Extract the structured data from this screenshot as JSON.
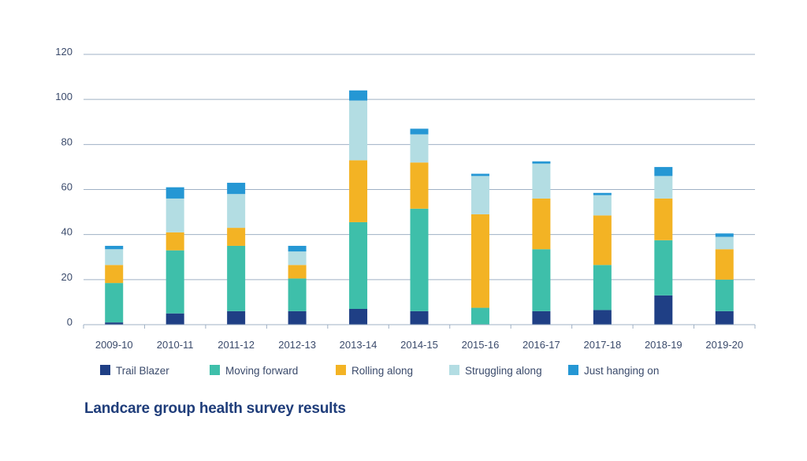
{
  "caption": "Landcare group health survey results",
  "chart_data": {
    "type": "bar",
    "stacked": true,
    "title": "",
    "xlabel": "",
    "ylabel": "",
    "ylim": [
      0,
      120
    ],
    "yticks": [
      0,
      20,
      40,
      60,
      80,
      100,
      120
    ],
    "grid": true,
    "legend_position": "bottom",
    "categories": [
      "2009-10",
      "2010-11",
      "2011-12",
      "2012-13",
      "2013-14",
      "2014-15",
      "2015-16",
      "2016-17",
      "2017-18",
      "2018-19",
      "2019-20"
    ],
    "series": [
      {
        "name": "Trail Blazer",
        "color": "#1f3f85",
        "values": [
          1,
          5,
          6,
          6,
          7,
          6,
          0,
          6,
          6.5,
          13,
          6
        ]
      },
      {
        "name": "Moving forward",
        "color": "#3ebfaa",
        "values": [
          17.5,
          28,
          29,
          14.5,
          38.5,
          45.5,
          7.5,
          27.5,
          20,
          24.5,
          14
        ]
      },
      {
        "name": "Rolling along",
        "color": "#f3b324",
        "values": [
          8,
          8,
          8,
          6,
          27.5,
          20.5,
          41.5,
          22.5,
          22,
          18.5,
          13.5
        ]
      },
      {
        "name": "Struggling along",
        "color": "#b3dde3",
        "values": [
          7,
          15,
          15,
          6,
          26.5,
          12.5,
          17,
          15.5,
          9,
          10,
          5.5
        ]
      },
      {
        "name": "Just  hanging on",
        "color": "#2597d4",
        "values": [
          1.5,
          5,
          5,
          2.5,
          4.5,
          2.5,
          1,
          1,
          1,
          4,
          1.5
        ]
      }
    ]
  }
}
